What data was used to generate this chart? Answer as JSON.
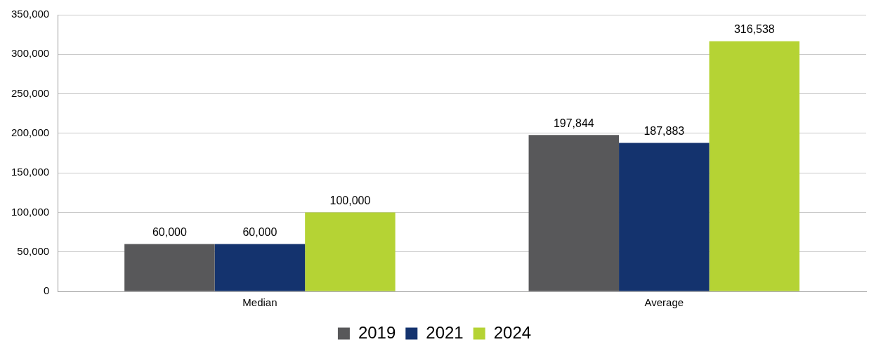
{
  "chart_data": {
    "type": "bar",
    "categories": [
      "Median",
      "Average"
    ],
    "series": [
      {
        "name": "2019",
        "color": "#58585a",
        "values": [
          60000,
          197844
        ],
        "value_labels": [
          "60,000",
          "197,844"
        ]
      },
      {
        "name": "2021",
        "color": "#14336e",
        "values": [
          60000,
          187883
        ],
        "value_labels": [
          "60,000",
          "187,883"
        ]
      },
      {
        "name": "2024",
        "color": "#b5d334",
        "values": [
          100000,
          316538
        ],
        "value_labels": [
          "100,000",
          "316,538"
        ]
      }
    ],
    "ylim": [
      0,
      350000
    ],
    "yticks": [
      {
        "value": 0,
        "label": "0"
      },
      {
        "value": 50000,
        "label": "50,000"
      },
      {
        "value": 100000,
        "label": "100,000"
      },
      {
        "value": 150000,
        "label": "150,000"
      },
      {
        "value": 200000,
        "label": "200,000"
      },
      {
        "value": 250000,
        "label": "250,000"
      },
      {
        "value": 300000,
        "label": "300,000"
      },
      {
        "value": 350000,
        "label": "350,000"
      }
    ],
    "grid": "y",
    "legend": "bottom"
  }
}
